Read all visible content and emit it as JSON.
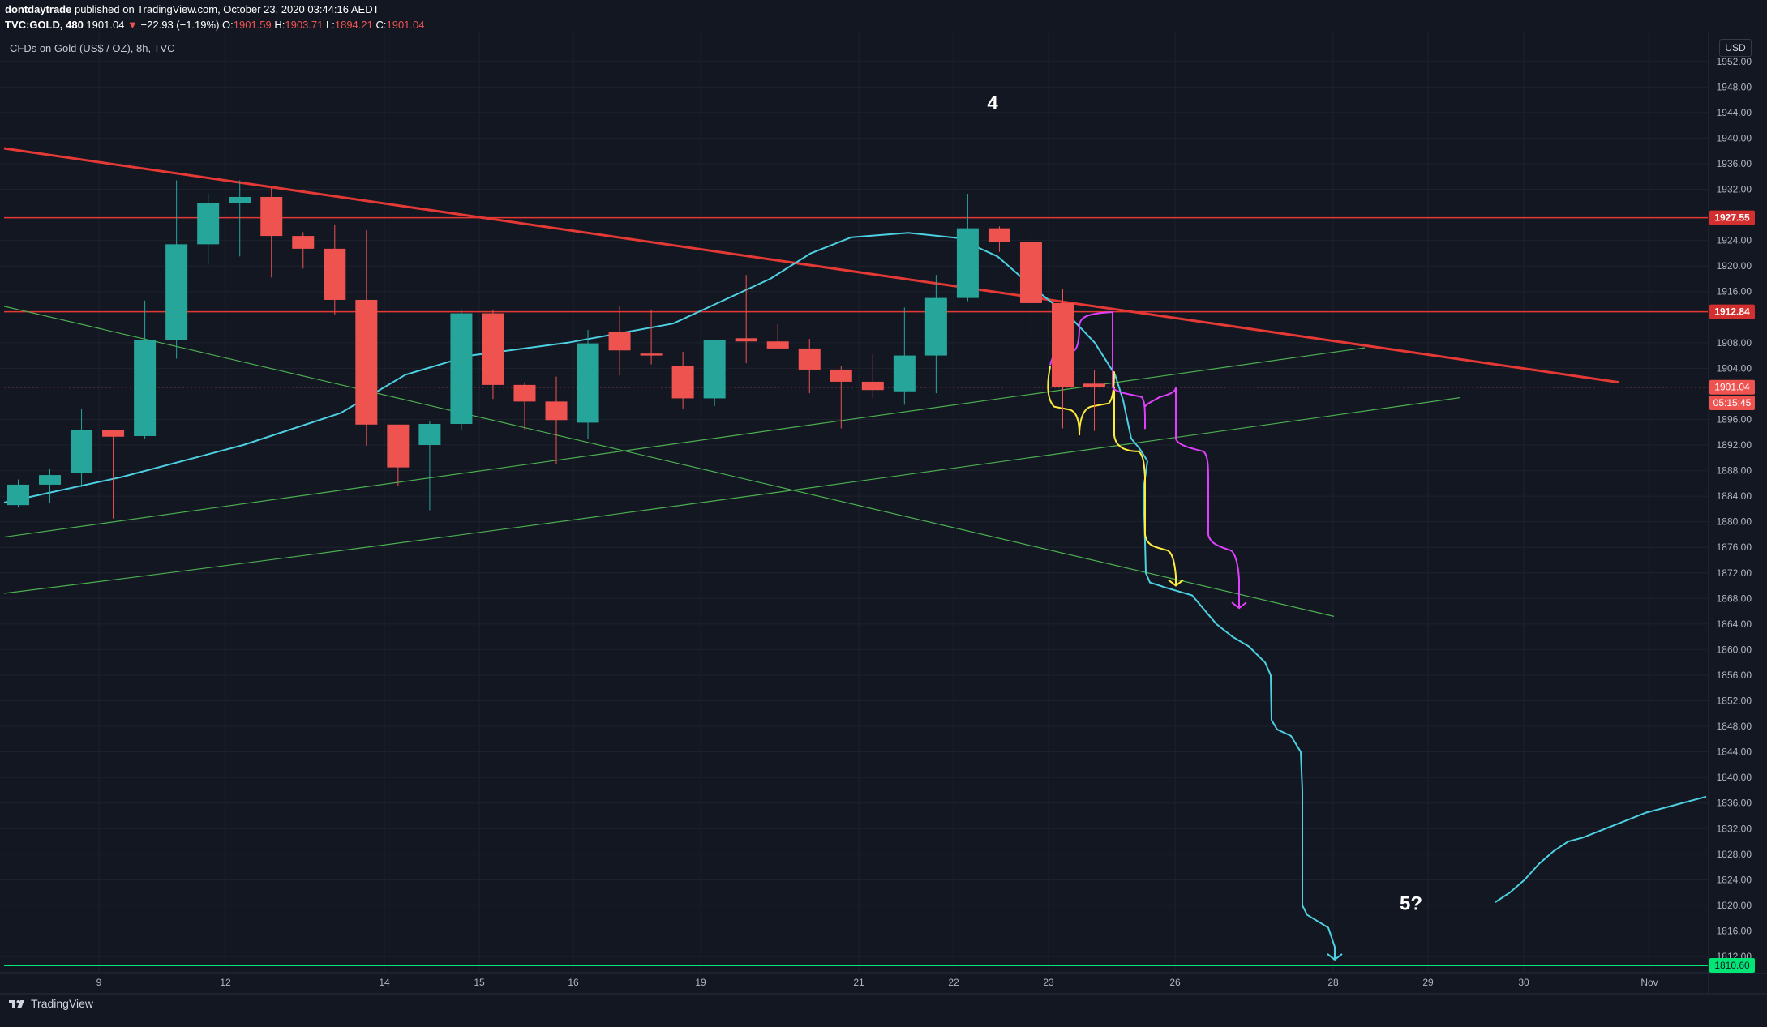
{
  "header": {
    "author": "dontdaytrade",
    "published_text": "published on TradingView.com, October 23, 2020 03:44:16 AEDT",
    "symbol": "TVC:GOLD, 480",
    "last": "1901.04",
    "change": "−22.93 (−1.19%)",
    "o_label": "O:",
    "o_value": "1901.59",
    "h_label": "H:",
    "h_value": "1903.71",
    "l_label": "L:",
    "l_value": "1894.21",
    "c_label": "C:",
    "c_value": "1901.04"
  },
  "legend": "CFDs on Gold (US$ / OZ), 8h, TVC",
  "currency_label": "USD",
  "footer": {
    "brand": "TradingView"
  },
  "colors": {
    "background": "#131722",
    "up": "#26a69a",
    "down": "#ef5350",
    "ma": "#4dd0e1",
    "trend_red": "#e53935",
    "support_green": "#4caf50",
    "yellow_path": "#ffeb3b",
    "magenta_path": "#e040fb",
    "target_green": "#00e676"
  },
  "chart_data": {
    "type": "candlestick",
    "ylim": [
      1810,
      1956
    ],
    "y_ticks": [
      1952,
      1948,
      1944,
      1940,
      1936,
      1932,
      1924,
      1920,
      1916,
      1908,
      1904,
      1896,
      1892,
      1888,
      1884,
      1880,
      1876,
      1872,
      1868,
      1864,
      1860,
      1856,
      1852,
      1848,
      1844,
      1840,
      1836,
      1832,
      1828,
      1824,
      1820,
      1816,
      1812
    ],
    "x_tick_labels": [
      "9",
      "12",
      "14",
      "15",
      "16",
      "19",
      "21",
      "22",
      "23",
      "26",
      "28",
      "29",
      "30",
      "Nov"
    ],
    "price_labels": [
      {
        "text": "1927.55",
        "value": 1927.55,
        "style": "red"
      },
      {
        "text": "1912.84",
        "value": 1912.84,
        "style": "red"
      },
      {
        "text": "1901.04",
        "value": 1901.04,
        "style": "current"
      },
      {
        "text": "05:15:45",
        "value": 1898.6,
        "style": "current"
      },
      {
        "text": "1810.60",
        "value": 1810.6,
        "style": "green"
      }
    ],
    "candles": [
      [
        1882.6,
        1886.6,
        1882.2,
        1885.8
      ],
      [
        1885.8,
        1888.3,
        1882.9,
        1887.3
      ],
      [
        1887.6,
        1897.6,
        1885.4,
        1894.3
      ],
      [
        1894.4,
        1894.4,
        1880.5,
        1893.3
      ],
      [
        1893.4,
        1914.6,
        1893.0,
        1908.4
      ],
      [
        1908.4,
        1933.4,
        1905.5,
        1923.4
      ],
      [
        1923.4,
        1931.3,
        1920.2,
        1929.8
      ],
      [
        1929.8,
        1933.4,
        1921.5,
        1930.8
      ],
      [
        1930.8,
        1932.2,
        1918.2,
        1924.7
      ],
      [
        1924.7,
        1925.3,
        1919.6,
        1922.7
      ],
      [
        1922.7,
        1926.5,
        1912.4,
        1914.7
      ],
      [
        1914.7,
        1925.6,
        1891.9,
        1895.2
      ],
      [
        1895.2,
        1895.2,
        1885.6,
        1888.5
      ],
      [
        1892.0,
        1895.8,
        1881.8,
        1895.3
      ],
      [
        1895.3,
        1913.2,
        1894.4,
        1912.6
      ],
      [
        1912.6,
        1913.2,
        1899.2,
        1901.4
      ],
      [
        1901.4,
        1901.8,
        1894.4,
        1898.8
      ],
      [
        1898.8,
        1902.7,
        1889.0,
        1895.9
      ],
      [
        1895.5,
        1910.0,
        1893.0,
        1907.9
      ],
      [
        1909.7,
        1913.7,
        1902.9,
        1906.8
      ],
      [
        1906.3,
        1913.2,
        1904.6,
        1906.0
      ],
      [
        1904.3,
        1906.6,
        1897.6,
        1899.3
      ],
      [
        1899.3,
        1908.4,
        1898.1,
        1908.4
      ],
      [
        1908.7,
        1918.6,
        1904.8,
        1908.2
      ],
      [
        1908.2,
        1910.9,
        1907.1,
        1907.1
      ],
      [
        1907.1,
        1908.6,
        1900.1,
        1903.8
      ],
      [
        1903.8,
        1904.4,
        1894.6,
        1901.9
      ],
      [
        1901.9,
        1906.2,
        1899.3,
        1900.6
      ],
      [
        1900.4,
        1913.5,
        1898.3,
        1906.0
      ],
      [
        1906.0,
        1918.6,
        1900.1,
        1915.0
      ],
      [
        1915.0,
        1931.3,
        1914.5,
        1925.9
      ],
      [
        1925.9,
        1926.2,
        1922.2,
        1923.8
      ],
      [
        1923.8,
        1925.3,
        1909.5,
        1914.2
      ],
      [
        1914.2,
        1916.4,
        1894.6,
        1901.0
      ],
      [
        1901.6,
        1903.7,
        1894.2,
        1901.0
      ]
    ],
    "annotations": [
      {
        "text": "4",
        "x": 1224,
        "y": 1945.5
      },
      {
        "text": "5?",
        "x": 1740,
        "y": 1820.3
      }
    ]
  }
}
